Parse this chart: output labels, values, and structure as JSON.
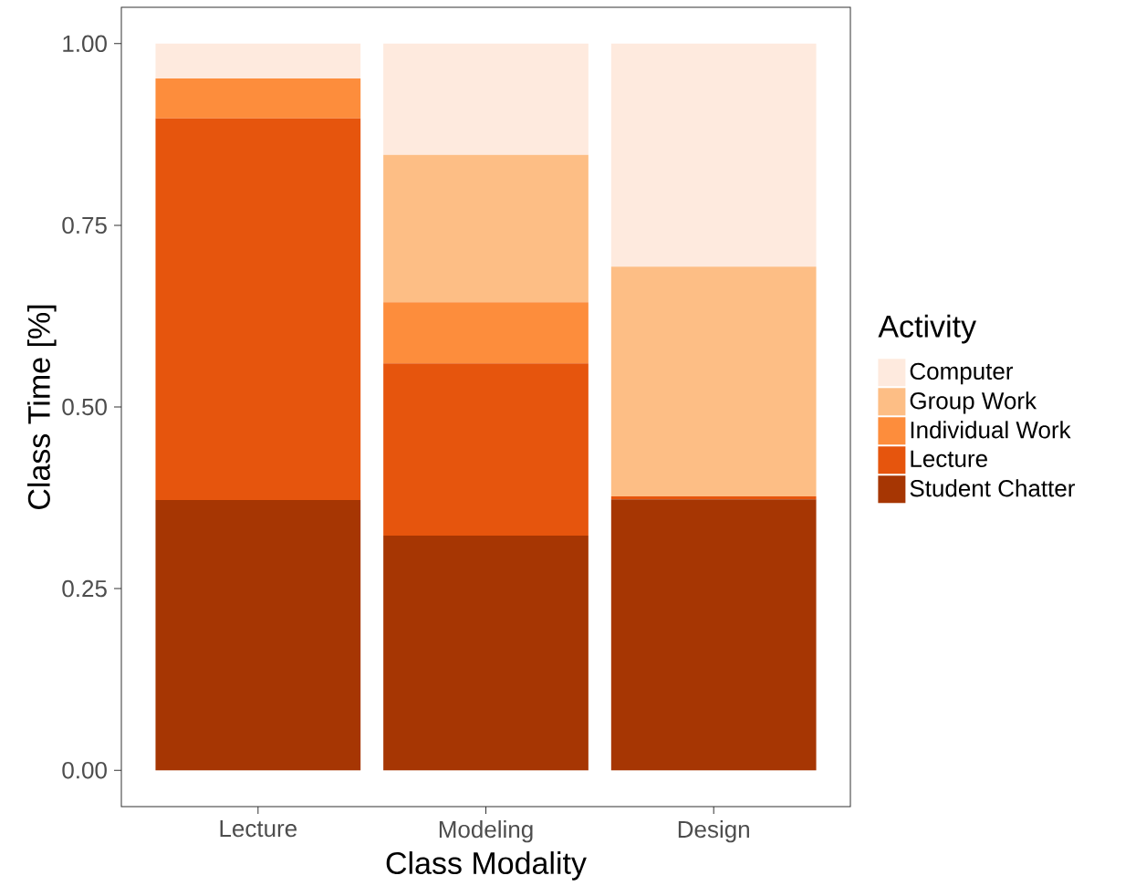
{
  "chart_data": {
    "type": "bar",
    "stacked": true,
    "xlabel": "Class Modality",
    "ylabel": "Class Time [%]",
    "legend_title": "Activity",
    "legend": "right",
    "grid": false,
    "categories": [
      "Lecture",
      "Modeling",
      "Design"
    ],
    "ylim": [
      -0.05,
      1.05
    ],
    "yticks": [
      {
        "value": 0,
        "label": "0.00"
      },
      {
        "value": 0.25,
        "label": "0.25"
      },
      {
        "value": 0.5,
        "label": "0.50"
      },
      {
        "value": 0.75,
        "label": "0.75"
      },
      {
        "value": 1,
        "label": "1.00"
      }
    ],
    "series": [
      {
        "name": "Student Chatter",
        "color": "#a63603",
        "values": [
          0.372,
          0.323,
          0.373
        ]
      },
      {
        "name": "Lecture",
        "color": "#e6550d",
        "values": [
          0.525,
          0.237,
          0.004
        ]
      },
      {
        "name": "Individual Work",
        "color": "#fd8d3c",
        "values": [
          0.055,
          0.084,
          0
        ]
      },
      {
        "name": "Group Work",
        "color": "#fdbe85",
        "values": [
          0,
          0.203,
          0.316
        ]
      },
      {
        "name": "Computer",
        "color": "#feeade",
        "values": [
          0.048,
          0.153,
          0.307
        ]
      }
    ]
  }
}
